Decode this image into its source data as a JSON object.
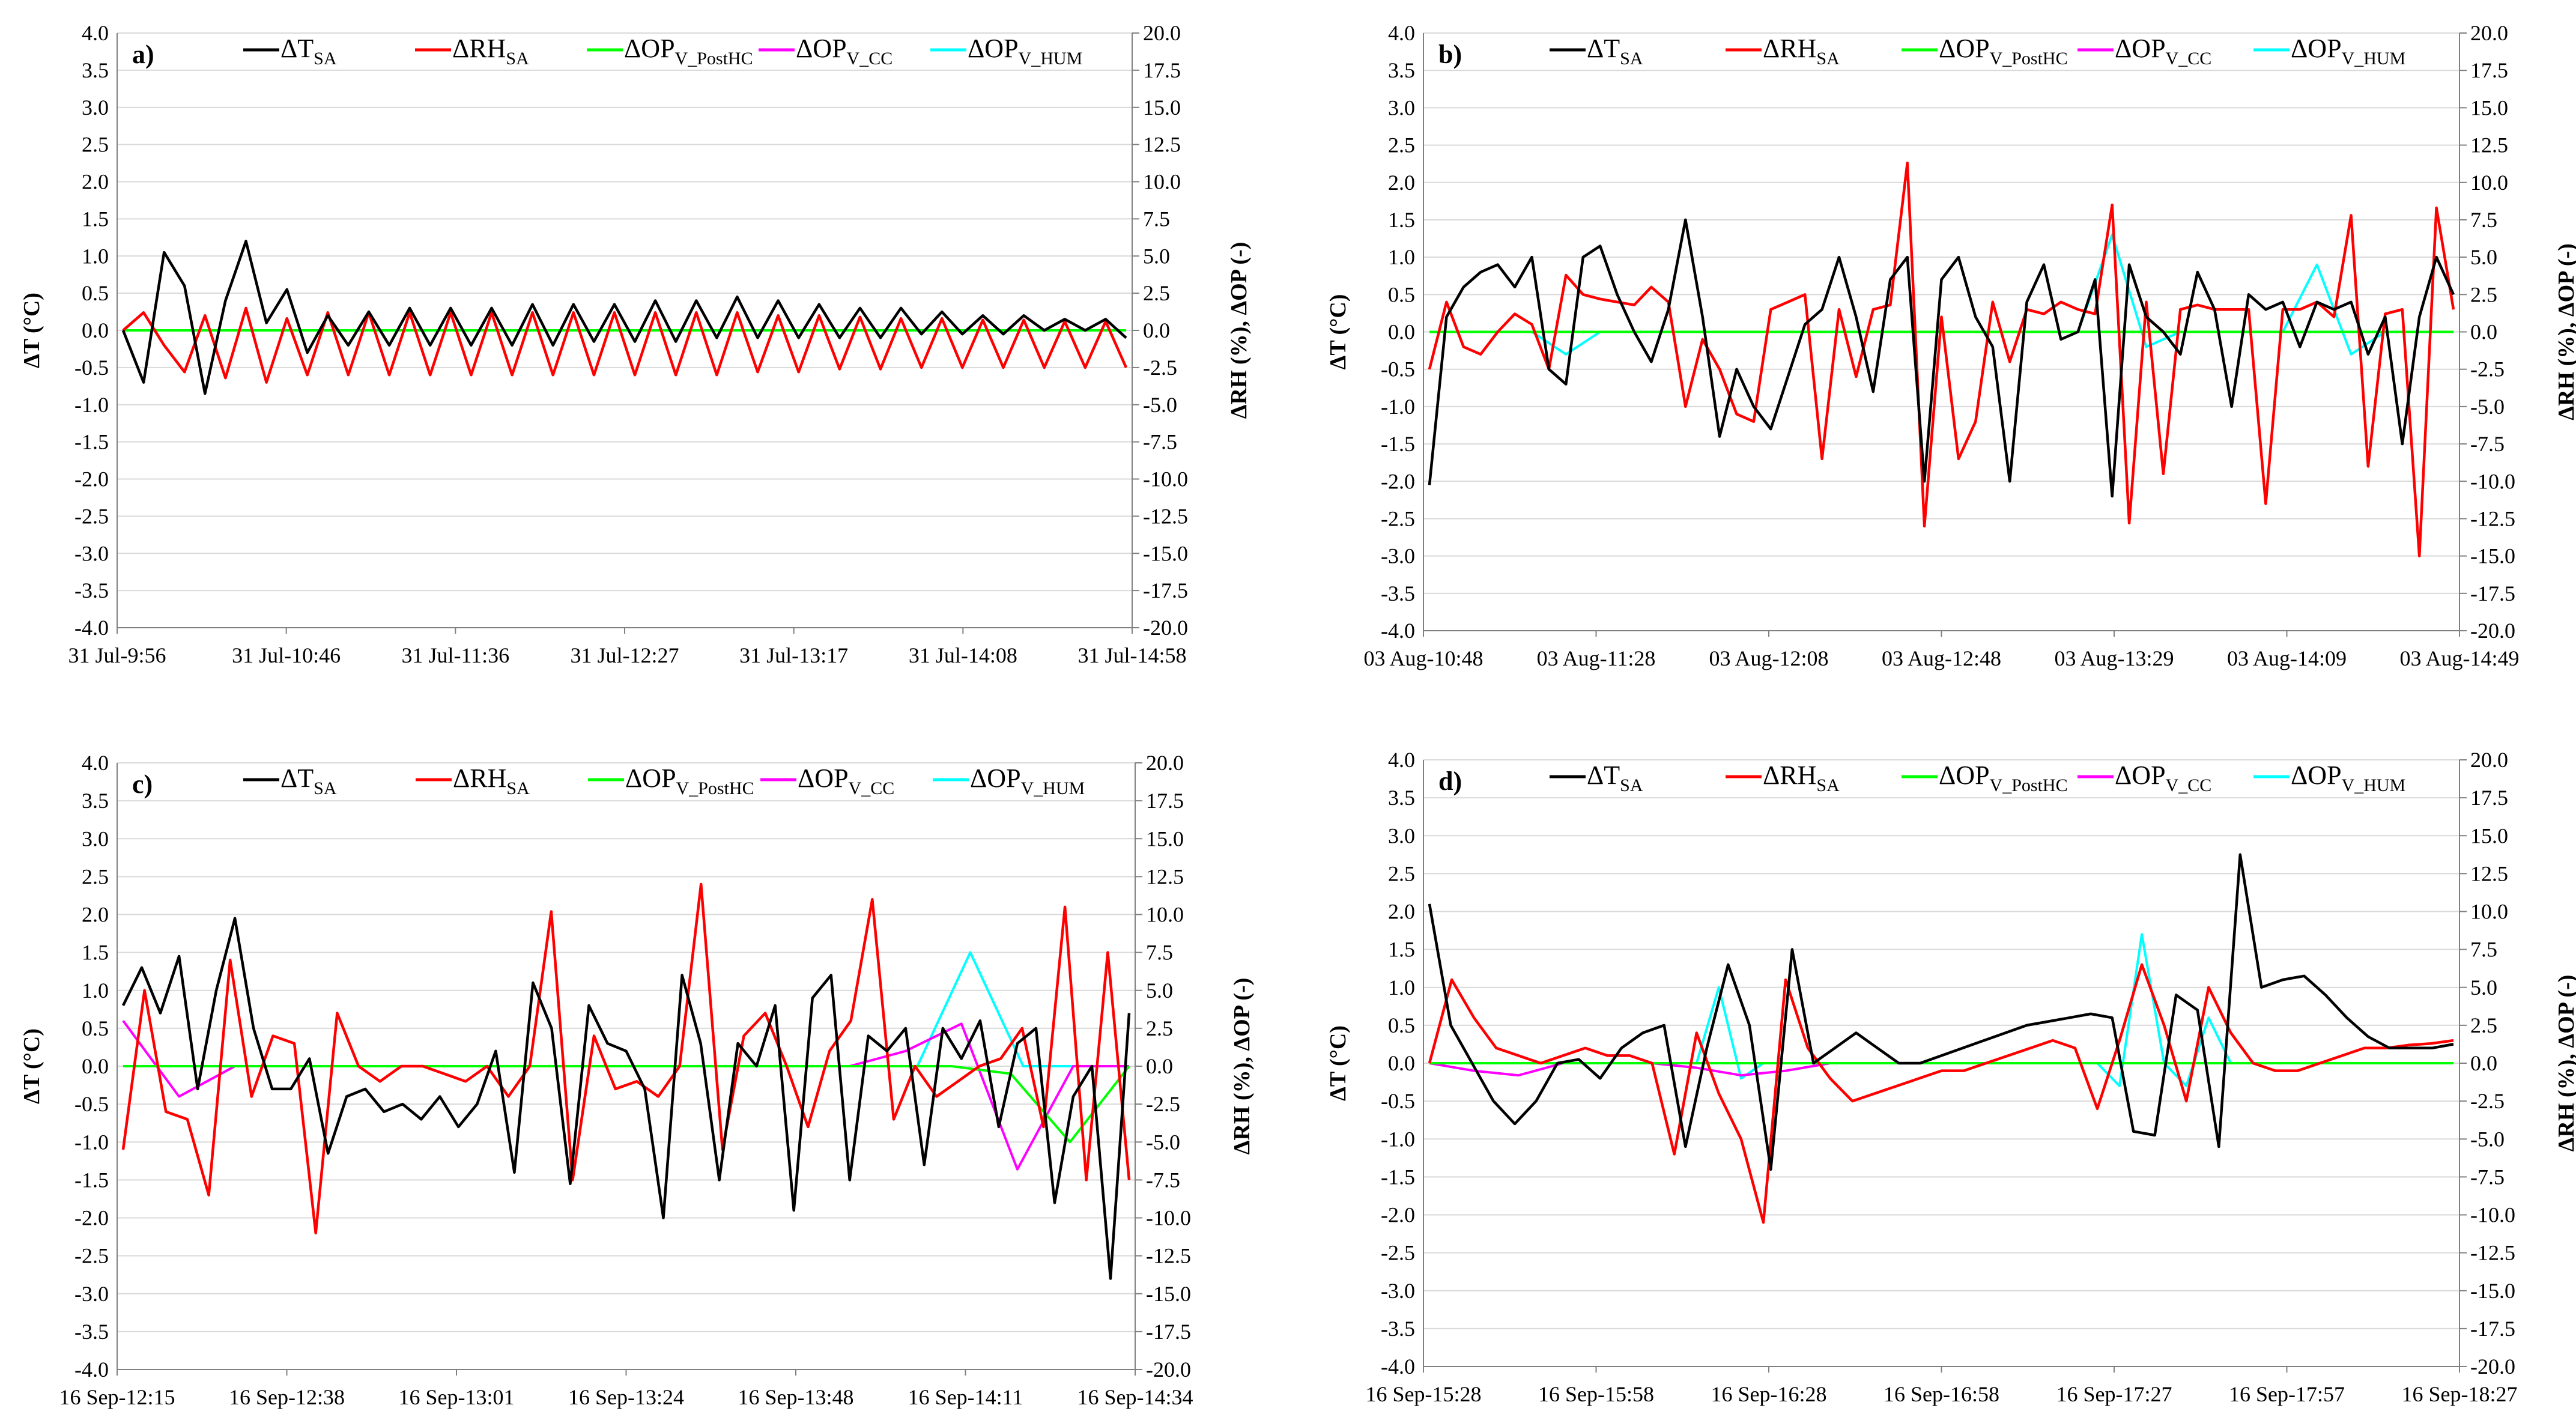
{
  "chart_data": [
    {
      "panel": "a)",
      "type": "line",
      "ylabel": "ΔT (°C)",
      "y2label": "ΔRH (%), ΔOP  (-)",
      "ylim": [
        -4.0,
        4.0
      ],
      "y2lim": [
        -20.0,
        20.0
      ],
      "yticks": [
        "4.0",
        "3.5",
        "3.0",
        "2.5",
        "2.0",
        "1.5",
        "1.0",
        "0.5",
        "0.0",
        "-0.5",
        "-1.0",
        "-1.5",
        "-2.0",
        "-2.5",
        "-3.0",
        "-3.5",
        "-4.0"
      ],
      "y2ticks": [
        "20.0",
        "17.5",
        "15.0",
        "12.5",
        "10.0",
        "7.5",
        "5.0",
        "2.5",
        "0.0",
        "-2.5",
        "-5.0",
        "-7.5",
        "-10.0",
        "-12.5",
        "-15.0",
        "-17.5",
        "-20.0"
      ],
      "xticks": [
        "31 Jul-9:56",
        "31 Jul-10:46",
        "31 Jul-11:36",
        "31 Jul-12:27",
        "31 Jul-13:17",
        "31 Jul-14:08",
        "31 Jul-14:58"
      ],
      "grid": "horizontal",
      "legend": "top",
      "series": [
        {
          "name": "ΔT",
          "sub": "SA",
          "axis": "left",
          "color": "#000000",
          "values": [
            0.0,
            -0.7,
            1.05,
            0.6,
            -0.85,
            0.4,
            1.2,
            0.1,
            0.55,
            -0.3,
            0.2,
            -0.2,
            0.25,
            -0.2,
            0.3,
            -0.2,
            0.3,
            -0.2,
            0.3,
            -0.2,
            0.35,
            -0.2,
            0.35,
            -0.15,
            0.35,
            -0.15,
            0.4,
            -0.15,
            0.4,
            -0.1,
            0.45,
            -0.1,
            0.4,
            -0.1,
            0.35,
            -0.1,
            0.3,
            -0.1,
            0.3,
            -0.05,
            0.25,
            -0.05,
            0.2,
            -0.05,
            0.2,
            0.0,
            0.15,
            0.0,
            0.15,
            -0.1
          ]
        },
        {
          "name": "ΔRH",
          "sub": "SA",
          "axis": "right",
          "color": "#ff0000",
          "values": [
            0.0,
            1.2,
            -1.0,
            -2.8,
            1.0,
            -3.2,
            1.5,
            -3.5,
            0.8,
            -3.0,
            1.2,
            -3.0,
            1.2,
            -3.0,
            1.2,
            -3.0,
            1.2,
            -3.0,
            1.2,
            -3.0,
            1.2,
            -3.0,
            1.2,
            -3.0,
            1.2,
            -3.0,
            1.2,
            -3.0,
            1.2,
            -3.0,
            1.2,
            -2.8,
            1.0,
            -2.8,
            1.0,
            -2.6,
            0.9,
            -2.6,
            0.8,
            -2.5,
            0.8,
            -2.5,
            0.7,
            -2.5,
            0.7,
            -2.5,
            0.6,
            -2.5,
            0.6,
            -2.5
          ]
        },
        {
          "name": "ΔOP",
          "sub": "V_PostHC",
          "axis": "right",
          "color": "#00ff00",
          "values": [
            0.0,
            0.0,
            0.0,
            0.0,
            0.0,
            0.0,
            0.0,
            0.0,
            0.0,
            0.0
          ]
        },
        {
          "name": "ΔOP",
          "sub": "V_CC",
          "axis": "right",
          "color": "#ff00ff",
          "values": [
            0.0,
            0.0,
            0.0,
            0.0,
            0.0,
            0.0,
            0.0,
            0.0,
            0.0,
            0.0
          ]
        },
        {
          "name": "ΔOP",
          "sub": "V_HUM",
          "axis": "right",
          "color": "#00ffff",
          "values": [
            0.0,
            0.0,
            0.0,
            0.0,
            0.0,
            0.0,
            0.0,
            0.0,
            0.0,
            0.0
          ]
        }
      ]
    },
    {
      "panel": "b)",
      "type": "line",
      "ylabel": "ΔT (°C)",
      "y2label": "ΔRH (%), ΔOP  (-)",
      "ylim": [
        -4.0,
        4.0
      ],
      "y2lim": [
        -20.0,
        20.0
      ],
      "yticks": [
        "4.0",
        "3.5",
        "3.0",
        "2.5",
        "2.0",
        "1.5",
        "1.0",
        "0.5",
        "0.0",
        "-0.5",
        "-1.0",
        "-1.5",
        "-2.0",
        "-2.5",
        "-3.0",
        "-3.5",
        "-4.0"
      ],
      "y2ticks": [
        "20.0",
        "17.5",
        "15.0",
        "12.5",
        "10.0",
        "7.5",
        "5.0",
        "2.5",
        "0.0",
        "-2.5",
        "-5.0",
        "-7.5",
        "-10.0",
        "-12.5",
        "-15.0",
        "-17.5",
        "-20.0"
      ],
      "xticks": [
        "03 Aug-10:48",
        "03 Aug-11:28",
        "03 Aug-12:08",
        "03 Aug-12:48",
        "03 Aug-13:29",
        "03 Aug-14:09",
        "03 Aug-14:49"
      ],
      "grid": "horizontal",
      "legend": "top",
      "series": [
        {
          "name": "ΔT",
          "sub": "SA",
          "axis": "left",
          "color": "#000000",
          "values": [
            -2.05,
            0.2,
            0.6,
            0.8,
            0.9,
            0.6,
            1.0,
            -0.5,
            -0.7,
            1.0,
            1.15,
            0.5,
            0.0,
            -0.4,
            0.3,
            1.5,
            0.2,
            -1.4,
            -0.5,
            -1.0,
            -1.3,
            -0.6,
            0.1,
            0.3,
            1.0,
            0.2,
            -0.8,
            0.7,
            1.0,
            -2.0,
            0.7,
            1.0,
            0.2,
            -0.2,
            -2.0,
            0.4,
            0.9,
            -0.1,
            0.0,
            0.7,
            -2.2,
            0.9,
            0.2,
            0.0,
            -0.3,
            0.8,
            0.3,
            -1.0,
            0.5,
            0.3,
            0.4,
            -0.2,
            0.4,
            0.3,
            0.4,
            -0.3,
            0.2,
            -1.5,
            0.2,
            1.0,
            0.5
          ]
        },
        {
          "name": "ΔRH",
          "sub": "SA",
          "axis": "right",
          "color": "#ff0000",
          "values": [
            -2.5,
            2.0,
            -1.0,
            -1.5,
            0.0,
            1.2,
            0.5,
            -2.5,
            3.8,
            2.5,
            2.2,
            2.0,
            1.8,
            3.0,
            2.0,
            -5.0,
            -0.5,
            -2.5,
            -5.5,
            -6.0,
            1.5,
            2.0,
            2.5,
            -8.5,
            1.5,
            -3.0,
            1.5,
            1.8,
            11.3,
            -13.0,
            1.0,
            -8.5,
            -6.0,
            2.0,
            -2.0,
            1.5,
            1.2,
            2.0,
            1.5,
            1.2,
            8.5,
            -12.8,
            2.0,
            -9.5,
            1.5,
            1.8,
            1.5,
            1.5,
            1.5,
            -11.5,
            1.5,
            1.5,
            2.0,
            1.0,
            7.8,
            -9.0,
            1.2,
            1.5,
            -15.0,
            8.3,
            1.5
          ]
        },
        {
          "name": "ΔOP",
          "sub": "V_PostHC",
          "axis": "right",
          "color": "#00ff00",
          "values": [
            0.0,
            0.0,
            0.0,
            0.0,
            0.0,
            0.0,
            0.0,
            0.0,
            0.0,
            0.0
          ]
        },
        {
          "name": "ΔOP",
          "sub": "V_CC",
          "axis": "right",
          "color": "#ff00ff",
          "values": [
            0.0,
            0.0,
            0.0,
            0.0,
            0.0,
            0.0,
            0.0,
            0.0,
            0.0,
            0.0
          ]
        },
        {
          "name": "ΔOP",
          "sub": "V_HUM",
          "axis": "right",
          "color": "#00ffff",
          "values": [
            0.0,
            0.0,
            0.0,
            0.0,
            -1.5,
            0.0,
            0.0,
            0.0,
            0.0,
            0.0,
            0.0,
            0.0,
            0.0,
            0.0,
            0.0,
            0.0,
            0.0,
            0.0,
            0.0,
            0.0,
            6.5,
            -1.0,
            0.0,
            0.0,
            0.0,
            0.0,
            4.5,
            -1.5,
            0.0,
            0.0,
            0.0
          ]
        }
      ]
    },
    {
      "panel": "c)",
      "type": "line",
      "ylabel": "ΔT (°C)",
      "y2label": "ΔRH (%), ΔOP  (-)",
      "ylim": [
        -4.0,
        4.0
      ],
      "y2lim": [
        -20.0,
        20.0
      ],
      "yticks": [
        "4.0",
        "3.5",
        "3.0",
        "2.5",
        "2.0",
        "1.5",
        "1.0",
        "0.5",
        "0.0",
        "-0.5",
        "-1.0",
        "-1.5",
        "-2.0",
        "-2.5",
        "-3.0",
        "-3.5",
        "-4.0"
      ],
      "y2ticks": [
        "20.0",
        "17.5",
        "15.0",
        "12.5",
        "10.0",
        "7.5",
        "5.0",
        "2.5",
        "0.0",
        "-2.5",
        "-5.0",
        "-7.5",
        "-10.0",
        "-12.5",
        "-15.0",
        "-17.5",
        "-20.0"
      ],
      "xticks": [
        "16 Sep-12:15",
        "16 Sep-12:38",
        "16 Sep-13:01",
        "16 Sep-13:24",
        "16 Sep-13:48",
        "16 Sep-14:11",
        "16 Sep-14:34"
      ],
      "grid": "horizontal",
      "legend": "top",
      "series": [
        {
          "name": "ΔT",
          "sub": "SA",
          "axis": "left",
          "color": "#000000",
          "values": [
            0.8,
            1.3,
            0.7,
            1.45,
            -0.3,
            1.0,
            1.95,
            0.5,
            -0.3,
            -0.3,
            0.1,
            -1.15,
            -0.4,
            -0.3,
            -0.6,
            -0.5,
            -0.7,
            -0.4,
            -0.8,
            -0.5,
            0.2,
            -1.4,
            1.1,
            0.5,
            -1.55,
            0.8,
            0.3,
            0.2,
            -0.3,
            -2.0,
            1.2,
            0.3,
            -1.5,
            0.3,
            0.0,
            0.8,
            -1.9,
            0.9,
            1.2,
            -1.5,
            0.4,
            0.2,
            0.5,
            -1.3,
            0.5,
            0.1,
            0.6,
            -0.8,
            0.3,
            0.5,
            -1.8,
            -0.4,
            0.0,
            -2.8,
            0.7
          ]
        },
        {
          "name": "ΔRH",
          "sub": "SA",
          "axis": "right",
          "color": "#ff0000",
          "values": [
            -5.5,
            5.0,
            -3.0,
            -3.5,
            -8.5,
            7.0,
            -2.0,
            2.0,
            1.5,
            -11.0,
            3.5,
            0.0,
            -1.0,
            0.0,
            0.0,
            -0.5,
            -1.0,
            0.0,
            -2.0,
            0.0,
            10.2,
            -7.5,
            2.0,
            -1.5,
            -1.0,
            -2.0,
            0.0,
            12.0,
            -5.5,
            2.0,
            3.5,
            0.0,
            -4.0,
            1.0,
            3.0,
            11.0,
            -3.5,
            0.0,
            -2.0,
            -1.0,
            0.0,
            0.5,
            2.5,
            -4.0,
            10.5,
            -7.5,
            7.5,
            -7.5
          ]
        },
        {
          "name": "ΔOP",
          "sub": "V_PostHC",
          "axis": "right",
          "color": "#00ff00",
          "values": [
            0.0,
            0.0,
            0.0,
            0.0,
            0.0,
            0.0,
            0.0,
            0.0,
            0.0,
            0.0,
            0.0,
            0.0,
            0.0,
            0.0,
            0.0,
            -0.5,
            -5.0,
            0.0
          ]
        },
        {
          "name": "ΔOP",
          "sub": "V_CC",
          "axis": "right",
          "color": "#ff00ff",
          "values": [
            3.0,
            -2.0,
            0.0,
            0.0,
            0.0,
            0.0,
            0.0,
            0.0,
            0.0,
            0.0,
            0.0,
            0.0,
            0.0,
            0.0,
            1.0,
            2.8,
            -6.8,
            0.0,
            0.0
          ]
        },
        {
          "name": "ΔOP",
          "sub": "V_HUM",
          "axis": "right",
          "color": "#00ffff",
          "values": [
            0.0,
            0.0,
            0.0,
            0.0,
            0.0,
            0.0,
            0.0,
            0.0,
            0.0,
            0.0,
            0.0,
            0.0,
            0.0,
            0.0,
            0.0,
            0.0,
            7.5,
            0.0,
            0.0,
            0.0
          ]
        }
      ]
    },
    {
      "panel": "d)",
      "type": "line",
      "ylabel": "ΔT (°C)",
      "y2label": "ΔRH (%), ΔOP  (-)",
      "ylim": [
        -4.0,
        4.0
      ],
      "y2lim": [
        -20.0,
        20.0
      ],
      "yticks": [
        "4.0",
        "3.5",
        "3.0",
        "2.5",
        "2.0",
        "1.5",
        "1.0",
        "0.5",
        "0.0",
        "-0.5",
        "-1.0",
        "-1.5",
        "-2.0",
        "-2.5",
        "-3.0",
        "-3.5",
        "-4.0"
      ],
      "y2ticks": [
        "20.0",
        "17.5",
        "15.0",
        "12.5",
        "10.0",
        "7.5",
        "5.0",
        "2.5",
        "0.0",
        "-2.5",
        "-5.0",
        "-7.5",
        "-10.0",
        "-12.5",
        "-15.0",
        "-17.5",
        "-20.0"
      ],
      "xticks": [
        "16 Sep-15:28",
        "16 Sep-15:58",
        "16 Sep-16:28",
        "16 Sep-16:58",
        "16 Sep-17:27",
        "16 Sep-17:57",
        "16 Sep-18:27"
      ],
      "grid": "horizontal",
      "legend": "top",
      "series": [
        {
          "name": "ΔT",
          "sub": "SA",
          "axis": "left",
          "color": "#000000",
          "values": [
            2.1,
            0.5,
            0.0,
            -0.5,
            -0.8,
            -0.5,
            0.0,
            0.05,
            -0.2,
            0.2,
            0.4,
            0.5,
            -1.1,
            0.2,
            1.3,
            0.5,
            -1.4,
            1.5,
            0.0,
            0.2,
            0.4,
            0.2,
            0.0,
            0.0,
            0.1,
            0.2,
            0.3,
            0.4,
            0.5,
            0.55,
            0.6,
            0.65,
            0.6,
            -0.9,
            -0.95,
            0.9,
            0.7,
            -1.1,
            2.75,
            1.0,
            1.1,
            1.15,
            0.9,
            0.6,
            0.35,
            0.2,
            0.2,
            0.2,
            0.25
          ]
        },
        {
          "name": "ΔRH",
          "sub": "SA",
          "axis": "right",
          "color": "#ff0000",
          "values": [
            0.0,
            5.5,
            3.0,
            1.0,
            0.5,
            0.0,
            0.5,
            1.0,
            0.5,
            0.5,
            0.0,
            -6.0,
            2.0,
            -2.0,
            -5.0,
            -10.5,
            5.5,
            1.0,
            -1.0,
            -2.5,
            -2.0,
            -1.5,
            -1.0,
            -0.5,
            -0.5,
            0.0,
            0.5,
            1.0,
            1.5,
            1.0,
            -3.0,
            1.5,
            6.5,
            2.5,
            -2.5,
            5.0,
            2.0,
            0.0,
            -0.5,
            -0.5,
            0.0,
            0.5,
            1.0,
            1.0,
            1.2,
            1.3,
            1.5
          ]
        },
        {
          "name": "ΔOP",
          "sub": "V_PostHC",
          "axis": "right",
          "color": "#00ff00",
          "values": [
            0.0,
            0.0,
            0.0,
            0.0,
            0.0,
            0.0,
            0.0,
            0.0,
            0.0,
            0.0,
            0.0,
            0.0
          ]
        },
        {
          "name": "ΔOP",
          "sub": "V_CC",
          "axis": "right",
          "color": "#ff00ff",
          "values": [
            0.0,
            -0.5,
            -0.8,
            0.0,
            0.0,
            0.0,
            -0.3,
            -0.8,
            -0.5,
            0.0,
            0.0,
            0.0,
            0.0,
            0.0,
            0.0,
            0.0,
            0.0,
            0.0,
            0.0,
            0.0,
            0.0,
            0.0,
            0.0,
            0.0
          ]
        },
        {
          "name": "ΔOP",
          "sub": "V_HUM",
          "axis": "right",
          "color": "#00ffff",
          "values": [
            0.0,
            0.0,
            0.0,
            0.0,
            0.0,
            0.0,
            0.0,
            0.0,
            0.0,
            0.0,
            0.0,
            0.0,
            0.0,
            5.0,
            -1.0,
            0.0,
            0.0,
            0.0,
            0.0,
            0.0,
            0.0,
            0.0,
            0.0,
            0.0,
            0.0,
            0.0,
            0.0,
            0.0,
            0.0,
            0.0,
            0.0,
            -1.5,
            8.5,
            0.0,
            -1.5,
            3.0,
            0.0,
            0.0,
            0.0,
            0.0,
            0.0,
            0.0,
            0.0,
            0.0,
            0.0,
            0.0,
            0.0
          ]
        }
      ]
    }
  ]
}
